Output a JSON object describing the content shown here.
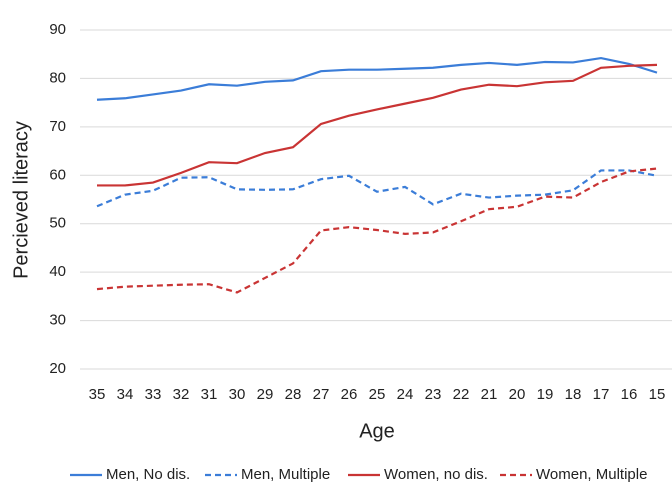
{
  "chart_data": {
    "type": "line",
    "x_label": "Age",
    "y_label": "Percieved literacy",
    "categories": [
      "35",
      "34",
      "33",
      "32",
      "31",
      "30",
      "29",
      "28",
      "27",
      "26",
      "25",
      "24",
      "23",
      "22",
      "21",
      "20",
      "19",
      "18",
      "17",
      "16",
      "15"
    ],
    "ylim": [
      20,
      90
    ],
    "yticks": [
      20,
      30,
      40,
      50,
      60,
      70,
      80,
      90
    ],
    "grid": true,
    "legend": "bottom",
    "series": [
      {
        "name": "Men, No dis.",
        "color": "#3b7dd8",
        "style": "solid",
        "values": [
          75.6,
          75.9,
          76.7,
          77.5,
          78.8,
          78.5,
          79.3,
          79.6,
          81.5,
          81.8,
          81.8,
          82.0,
          82.2,
          82.8,
          83.2,
          82.8,
          83.4,
          83.3,
          84.2,
          83.0,
          81.2
        ]
      },
      {
        "name": "Men, Multiple",
        "color": "#3b7dd8",
        "style": "dashed",
        "values": [
          53.6,
          56.0,
          56.8,
          59.5,
          59.6,
          57.1,
          57.0,
          57.1,
          59.2,
          59.9,
          56.6,
          57.6,
          54.0,
          56.2,
          55.4,
          55.8,
          56.0,
          56.9,
          61.0,
          61.0,
          59.9
        ]
      },
      {
        "name": "Women, no dis.",
        "color": "#c93434",
        "style": "solid",
        "values": [
          57.9,
          57.9,
          58.5,
          60.5,
          62.7,
          62.5,
          64.6,
          65.8,
          70.6,
          72.3,
          73.6,
          74.8,
          76.0,
          77.7,
          78.7,
          78.4,
          79.2,
          79.5,
          82.2,
          82.6,
          82.8
        ]
      },
      {
        "name": "Women, Multiple",
        "color": "#c93434",
        "style": "dashed",
        "values": [
          36.5,
          37.0,
          37.2,
          37.4,
          37.5,
          35.8,
          38.8,
          41.8,
          48.6,
          49.3,
          48.7,
          47.9,
          48.2,
          50.5,
          53.0,
          53.5,
          55.6,
          55.4,
          58.6,
          60.8,
          61.4
        ]
      }
    ]
  }
}
